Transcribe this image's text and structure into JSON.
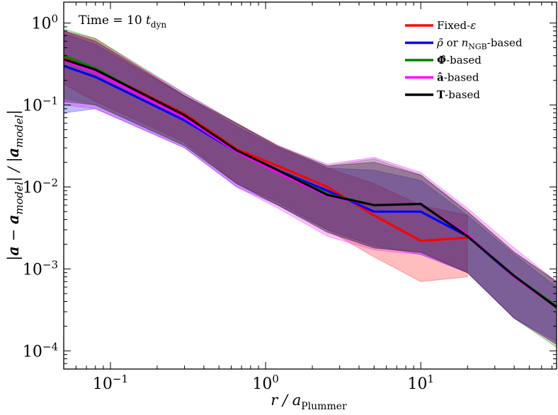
{
  "chart_data": {
    "type": "line",
    "title": "",
    "annotation": "Time = 10 t_dyn",
    "annotation_parts": {
      "prefix": "Time = 10 ",
      "main": "t",
      "sub": "dyn"
    },
    "xlabel": {
      "main": "r / a",
      "sub": "Plummer"
    },
    "ylabel": {
      "text": "|a − a_model| / |a_model|",
      "parts": [
        "|",
        "a",
        " − ",
        "a",
        "model",
        "| / |",
        "a",
        "model",
        "|"
      ]
    },
    "xscale": "log",
    "yscale": "log",
    "xlim": [
      0.05,
      75
    ],
    "ylim": [
      6e-05,
      1.8
    ],
    "x_ticks": [
      {
        "value": 0.1,
        "label": "10",
        "exp": "−1"
      },
      {
        "value": 1,
        "label": "10",
        "exp": "0"
      },
      {
        "value": 10,
        "label": "10",
        "exp": "1"
      }
    ],
    "y_ticks": [
      {
        "value": 0.0001,
        "label": "10",
        "exp": "−4"
      },
      {
        "value": 0.001,
        "label": "10",
        "exp": "−3"
      },
      {
        "value": 0.01,
        "label": "10",
        "exp": "−2"
      },
      {
        "value": 0.1,
        "label": "10",
        "exp": "−1"
      },
      {
        "value": 1,
        "label": "10",
        "exp": "0"
      }
    ],
    "grid": false,
    "legend_position": "top-right",
    "series": [
      {
        "name": "Fixed-ε",
        "color": "#ff0000",
        "x": [
          0.05,
          0.08,
          0.3,
          0.65,
          1.2,
          2.5,
          5,
          10,
          20
        ],
        "y": [
          0.37,
          0.27,
          0.078,
          0.029,
          0.018,
          0.01,
          0.0045,
          0.0022,
          0.0024
        ],
        "upper": [
          0.8,
          0.65,
          0.13,
          0.06,
          0.032,
          0.017,
          0.011,
          0.006,
          0.0045
        ],
        "lower": [
          0.18,
          0.11,
          0.035,
          0.011,
          0.0065,
          0.003,
          0.0014,
          0.0007,
          0.0008
        ]
      },
      {
        "name": "ρ̃ or n_NGB-based",
        "color": "#0000ff",
        "x": [
          0.05,
          0.08,
          0.3,
          0.65,
          1.2,
          2.5,
          5,
          10,
          20,
          40,
          75
        ],
        "y": [
          0.3,
          0.22,
          0.065,
          0.027,
          0.016,
          0.009,
          0.005,
          0.005,
          0.0025,
          0.0008,
          0.00035
        ],
        "upper": [
          0.75,
          0.55,
          0.13,
          0.055,
          0.03,
          0.017,
          0.016,
          0.012,
          0.0045,
          0.0015,
          0.0006
        ],
        "lower": [
          0.08,
          0.09,
          0.03,
          0.01,
          0.006,
          0.003,
          0.0019,
          0.0015,
          0.0009,
          0.00025,
          0.00013
        ]
      },
      {
        "name": "Φ̂-based",
        "color": "#008000",
        "x": [
          0.05,
          0.08,
          0.3,
          0.65,
          1.2,
          2.5,
          5,
          10,
          20,
          40,
          75
        ],
        "y": [
          0.4,
          0.28,
          0.072,
          0.028,
          0.016,
          0.0082,
          0.006,
          0.0062,
          0.0025,
          0.00082,
          0.00035
        ],
        "upper": [
          0.85,
          0.65,
          0.14,
          0.06,
          0.032,
          0.018,
          0.022,
          0.014,
          0.005,
          0.0016,
          0.0007
        ],
        "lower": [
          0.12,
          0.1,
          0.032,
          0.011,
          0.006,
          0.0028,
          0.0018,
          0.0016,
          0.0009,
          0.00025,
          0.00011
        ]
      },
      {
        "name": "â-based",
        "color": "#ff00ff",
        "x": [
          0.05,
          0.08,
          0.3,
          0.65,
          1.2,
          2.5,
          5,
          10,
          20,
          40,
          75
        ],
        "y": [
          0.35,
          0.25,
          0.07,
          0.027,
          0.015,
          0.0078,
          0.006,
          0.0062,
          0.0026,
          0.0008,
          0.00034
        ],
        "upper": [
          0.8,
          0.6,
          0.14,
          0.06,
          0.032,
          0.019,
          0.023,
          0.015,
          0.0055,
          0.0018,
          0.0007
        ],
        "lower": [
          0.1,
          0.09,
          0.03,
          0.01,
          0.0055,
          0.0025,
          0.0017,
          0.0015,
          0.0009,
          0.00025,
          0.00012
        ]
      },
      {
        "name": "T-based",
        "color": "#000000",
        "x": [
          0.05,
          0.08,
          0.3,
          0.65,
          1.2,
          2.5,
          5,
          10,
          20,
          40,
          75
        ],
        "y": [
          0.36,
          0.27,
          0.075,
          0.028,
          0.016,
          0.008,
          0.006,
          0.0062,
          0.0025,
          0.00082,
          0.00034
        ],
        "upper": [
          0.8,
          0.6,
          0.13,
          0.06,
          0.031,
          0.018,
          0.02,
          0.014,
          0.005,
          0.0016,
          0.0007
        ],
        "lower": [
          0.11,
          0.1,
          0.032,
          0.011,
          0.006,
          0.0028,
          0.0018,
          0.0016,
          0.0009,
          0.00025,
          0.00012
        ]
      }
    ],
    "legend": [
      {
        "series": 0,
        "parts": [
          {
            "t": "Fixed-",
            "style": "normal"
          },
          {
            "t": "ε",
            "style": "italic"
          }
        ]
      },
      {
        "series": 1,
        "parts": [
          {
            "t": "ρ̃",
            "style": "italic"
          },
          {
            "t": " or ",
            "style": "normal"
          },
          {
            "t": "n",
            "style": "italic"
          },
          {
            "t": "NGB",
            "style": "sub"
          },
          {
            "t": "-based",
            "style": "normal"
          }
        ]
      },
      {
        "series": 2,
        "parts": [
          {
            "t": "Φ̂",
            "style": "bold"
          },
          {
            "t": "-based",
            "style": "normal"
          }
        ]
      },
      {
        "series": 3,
        "parts": [
          {
            "t": "â",
            "style": "bold"
          },
          {
            "t": "-based",
            "style": "normal"
          }
        ]
      },
      {
        "series": 4,
        "parts": [
          {
            "t": "T",
            "style": "bold"
          },
          {
            "t": "-based",
            "style": "normal"
          }
        ]
      }
    ]
  }
}
